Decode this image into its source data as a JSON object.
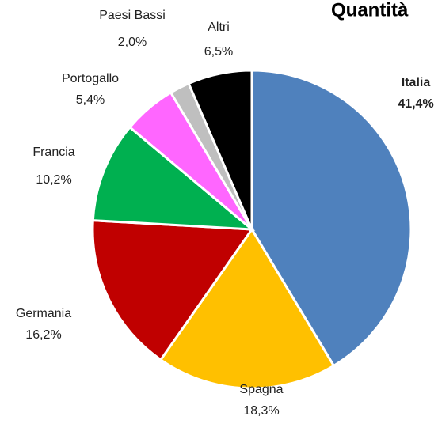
{
  "chart_data": {
    "type": "pie",
    "title": "Quantità",
    "categories": [
      "Italia",
      "Spagna",
      "Germania",
      "Francia",
      "Portogallo",
      "Paesi Bassi",
      "Altri"
    ],
    "values": [
      41.4,
      18.3,
      16.2,
      10.2,
      5.4,
      2.0,
      6.5
    ],
    "value_labels": [
      "41,4%",
      "18,3%",
      "16,2%",
      "10,2%",
      "5,4%",
      "2,0%",
      "6,5%"
    ],
    "colors": [
      "#4f81bd",
      "#ffc000",
      "#c00000",
      "#00b050",
      "#ff66ff",
      "#bfbfbf",
      "#000000"
    ]
  }
}
